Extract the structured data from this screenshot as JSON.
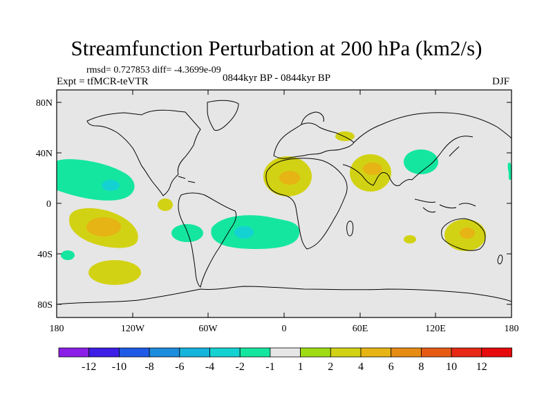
{
  "title": "Streamfunction Perturbation at 200 hPa (km2/s)",
  "stats": "rmsd= 0.727853 diff= -4.3699e-09",
  "experiment": "Expt = tfMCR-teVTR",
  "period": "0844kyr BP - 0844kyr BP",
  "season": "DJF",
  "map": {
    "lat_ticks": [
      "80N",
      "40N",
      "0",
      "40S",
      "80S"
    ],
    "lon_ticks": [
      "180",
      "120W",
      "60W",
      "0",
      "60E",
      "120E",
      "180"
    ],
    "background_color": "#e6e6e6",
    "coastline_color": "#000000"
  },
  "colorbar": {
    "labels": [
      "-12",
      "-10",
      "-8",
      "-6",
      "-4",
      "-2",
      "-1",
      "1",
      "2",
      "4",
      "6",
      "8",
      "10",
      "12"
    ],
    "colors": [
      "#8a1ee6",
      "#3c1ee6",
      "#1e5ae6",
      "#1e8cdc",
      "#14b4dc",
      "#14d2d2",
      "#14e6a0",
      "#e6e6e6",
      "#a0dc14",
      "#d2d214",
      "#e6b414",
      "#e68c14",
      "#e65a14",
      "#e62814",
      "#e60a0a"
    ]
  },
  "anomalies": [
    {
      "region": "North Pacific west of North America",
      "level": "-1"
    },
    {
      "region": "North Pacific core",
      "level": "-2"
    },
    {
      "region": "South Pacific",
      "level": "2"
    },
    {
      "region": "South Pacific core",
      "level": "4"
    },
    {
      "region": "Southeast Pacific",
      "level": "2"
    },
    {
      "region": "Eastern tropical Pacific",
      "level": "2"
    },
    {
      "region": "South America / South Atlantic",
      "level": "-1"
    },
    {
      "region": "South Atlantic core",
      "level": "-2"
    },
    {
      "region": "North Africa",
      "level": "2"
    },
    {
      "region": "North Africa core",
      "level": "4"
    },
    {
      "region": "South Asia",
      "level": "2"
    },
    {
      "region": "South Asia core",
      "level": "4"
    },
    {
      "region": "East Asia",
      "level": "-1"
    },
    {
      "region": "Australia",
      "level": "2"
    },
    {
      "region": "Australia core",
      "level": "4"
    },
    {
      "region": "Europe",
      "level": "2"
    }
  ]
}
